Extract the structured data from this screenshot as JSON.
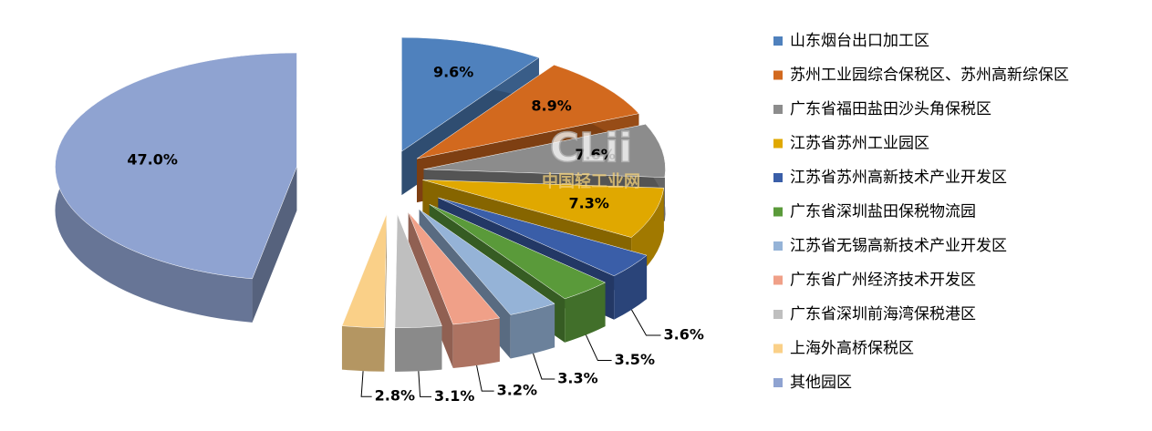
{
  "chart_data": {
    "type": "pie3d",
    "categories": [
      "山东烟台出口加工区",
      "苏州工业园综合保税区、苏州高新综保区",
      "广东省福田盐田沙头角保税区",
      "江苏省苏州工业园区",
      "江苏省苏州高新技术产业开发区",
      "广东省深圳盐田保税物流园",
      "江苏省无锡高新技术产业开发区",
      "广东省广州经济技术开发区",
      "广东省深圳前海湾保税港区",
      "上海外高桥保税区",
      "其他园区"
    ],
    "values": [
      9.6,
      8.9,
      7.6,
      7.3,
      3.6,
      3.5,
      3.3,
      3.2,
      3.1,
      2.8,
      47.0
    ],
    "value_labels": [
      "9.6%",
      "8.9%",
      "7.6%",
      "7.3%",
      "3.6%",
      "3.5%",
      "3.3%",
      "3.2%",
      "3.1%",
      "2.8%",
      "47.0%"
    ],
    "colors": [
      "#4f81bd",
      "#d2691e",
      "#8c8c8c",
      "#e0a800",
      "#3a5ea8",
      "#5a9a3a",
      "#95b3d7",
      "#f0a088",
      "#bfbfbf",
      "#fad088",
      "#8fa3d1"
    ],
    "legend": "right",
    "watermark": {
      "logo": "CLii",
      "text": "中国轻工业网"
    }
  }
}
